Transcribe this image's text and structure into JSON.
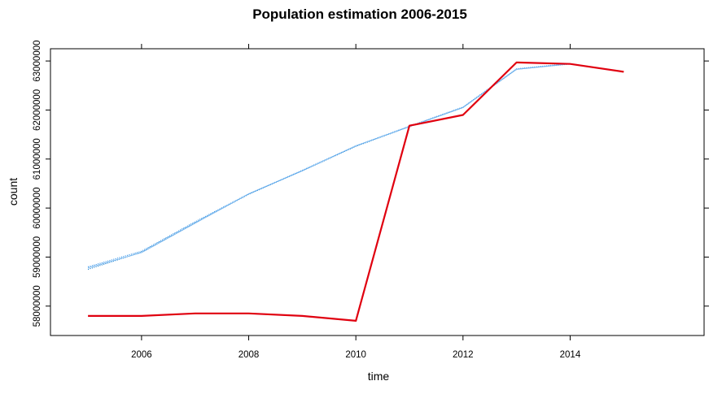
{
  "chart_data": {
    "type": "line",
    "title": "Population estimation 2006-2015",
    "xlabel": "time",
    "ylabel": "count",
    "xlim": [
      2004.3,
      2016.5
    ],
    "ylim": [
      57400000,
      63250000
    ],
    "x_ticks": [
      2006,
      2008,
      2010,
      2012,
      2014
    ],
    "y_ticks": [
      58000000,
      59000000,
      60000000,
      61000000,
      62000000,
      63000000
    ],
    "x_tick_labels": [
      "2006",
      "2008",
      "2010",
      "2012",
      "2014"
    ],
    "y_tick_labels": [
      "58000000",
      "59000000",
      "60000000",
      "61000000",
      "62000000",
      "63000000"
    ],
    "grid": false,
    "legend": "none",
    "series": [
      {
        "color": "#0072c6",
        "style": "dotted",
        "x": [
          2005,
          2006,
          2007,
          2008,
          2009,
          2010,
          2011,
          2012,
          2013,
          2014
        ],
        "values": [
          58750000,
          59100000,
          59700000,
          60280000,
          60760000,
          61260000,
          61660000,
          62050000,
          62830000,
          62940000
        ]
      },
      {
        "color": "#2a8ee8",
        "style": "dotted",
        "x": [
          2005,
          2006,
          2007,
          2008,
          2009,
          2010,
          2011,
          2012,
          2013,
          2014
        ],
        "values": [
          58800000,
          59120000,
          59720000,
          60290000,
          60770000,
          61270000,
          61670000,
          62060000,
          62840000,
          62950000
        ]
      },
      {
        "color": "#7ab8f0",
        "style": "solid-thin",
        "x": [
          2005,
          2006,
          2007,
          2008,
          2009,
          2010,
          2011,
          2012,
          2013,
          2014
        ],
        "values": [
          58780000,
          59090000,
          59690000,
          60290000,
          60760000,
          61270000,
          61660000,
          62050000,
          62830000,
          62940000
        ]
      },
      {
        "color": "#e0000f",
        "style": "solid",
        "x": [
          2005,
          2006,
          2007,
          2008,
          2009,
          2010,
          2011,
          2012,
          2013,
          2014,
          2015
        ],
        "values": [
          57800000,
          57800000,
          57850000,
          57850000,
          57800000,
          57700000,
          61680000,
          61900000,
          62970000,
          62940000,
          62780000
        ]
      }
    ]
  }
}
